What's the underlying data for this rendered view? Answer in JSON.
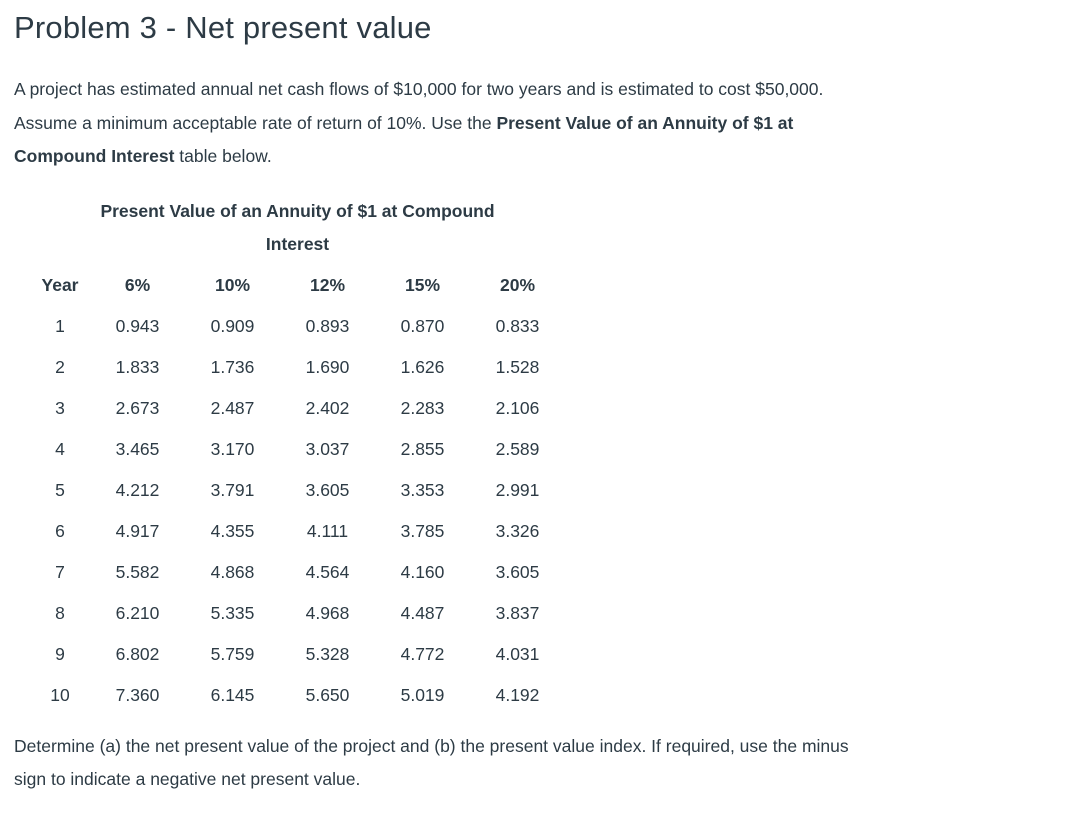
{
  "page": {
    "title": "Problem 3 - Net present value"
  },
  "intro": {
    "line1": "A project has estimated annual net cash flows of $10,000 for two years and is estimated to cost $50,000.",
    "line2_plain": "Assume a minimum acceptable rate of return of 10%. Use the ",
    "line2_bold": "Present Value of an Annuity of $1 at",
    "line3_bold": "Compound Interest",
    "line3_plain": " table below."
  },
  "table": {
    "title_line1": "Present Value of an Annuity of $1 at Compound",
    "title_line2": "Interest",
    "headers": [
      "Year",
      "6%",
      "10%",
      "12%",
      "15%",
      "20%"
    ],
    "rows": [
      [
        "1",
        "0.943",
        "0.909",
        "0.893",
        "0.870",
        "0.833"
      ],
      [
        "2",
        "1.833",
        "1.736",
        "1.690",
        "1.626",
        "1.528"
      ],
      [
        "3",
        "2.673",
        "2.487",
        "2.402",
        "2.283",
        "2.106"
      ],
      [
        "4",
        "3.465",
        "3.170",
        "3.037",
        "2.855",
        "2.589"
      ],
      [
        "5",
        "4.212",
        "3.791",
        "3.605",
        "3.353",
        "2.991"
      ],
      [
        "6",
        "4.917",
        "4.355",
        "4.111",
        "3.785",
        "3.326"
      ],
      [
        "7",
        "5.582",
        "4.868",
        "4.564",
        "4.160",
        "3.605"
      ],
      [
        "8",
        "6.210",
        "5.335",
        "4.968",
        "4.487",
        "3.837"
      ],
      [
        "9",
        "6.802",
        "5.759",
        "5.328",
        "4.772",
        "4.031"
      ],
      [
        "10",
        "7.360",
        "6.145",
        "5.650",
        "5.019",
        "4.192"
      ]
    ]
  },
  "question": {
    "line1": "Determine (a) the net present value of the project and (b) the present value index. If required, use the minus",
    "line2": "sign to indicate a negative net present value."
  },
  "colors": {
    "text": "#2d3b45",
    "background": "#ffffff"
  }
}
